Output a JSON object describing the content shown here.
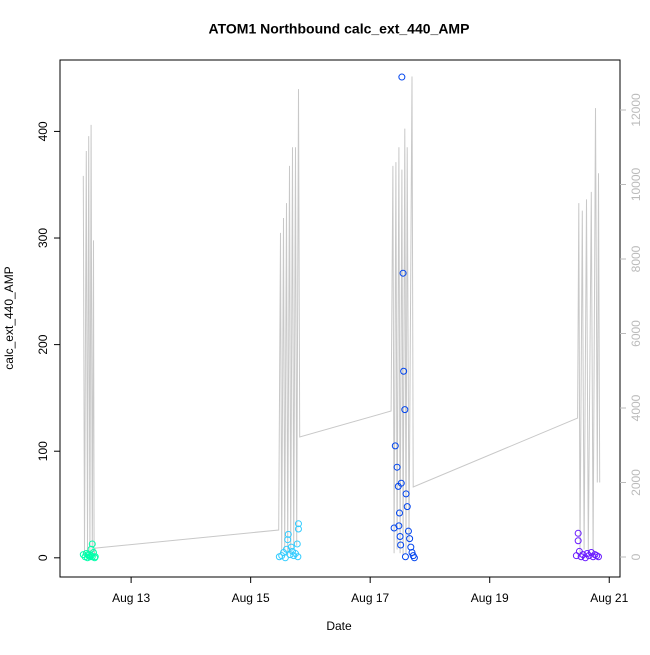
{
  "chart_data": {
    "type": "scatter",
    "title": "ATOM1 Northbound calc_ext_440_AMP",
    "xlabel": "Date",
    "ylabel": "calc_ext_440_AMP",
    "xlim": [
      11.81,
      21.18
    ],
    "xticks": [
      {
        "value": 13,
        "label": "Aug 13"
      },
      {
        "value": 15,
        "label": "Aug 15"
      },
      {
        "value": 17,
        "label": "Aug 17"
      },
      {
        "value": 19,
        "label": "Aug 19"
      },
      {
        "value": 21,
        "label": "Aug 21"
      }
    ],
    "ylim": [
      -18,
      467
    ],
    "yticks": [
      0,
      100,
      200,
      300,
      400
    ],
    "y2lim": [
      -537,
      13342
    ],
    "y2ticks": [
      0,
      2000,
      4000,
      6000,
      8000,
      10000,
      12000
    ],
    "series": [
      {
        "type": "line",
        "axis": "y2",
        "color": "#c8c8c8",
        "x": [
          12.2,
          12.22,
          12.25,
          12.27,
          12.29,
          12.31,
          12.33,
          12.35,
          12.37,
          12.38,
          12.4,
          15.47,
          15.5,
          15.52,
          15.55,
          15.57,
          15.6,
          15.62,
          15.65,
          15.67,
          15.7,
          15.72,
          15.75,
          15.77,
          15.8,
          15.82,
          17.35,
          17.38,
          17.4,
          17.43,
          17.45,
          17.48,
          17.5,
          17.53,
          17.55,
          17.58,
          17.6,
          17.62,
          17.65,
          17.7,
          17.72,
          20.47,
          20.49,
          20.51,
          20.55,
          20.58,
          20.62,
          20.65,
          20.7,
          20.73,
          20.77,
          20.8,
          20.82,
          20.84
        ],
        "values": [
          10230,
          50,
          10900,
          100,
          11300,
          0,
          11600,
          50,
          8500,
          0,
          240,
          725,
          8700,
          100,
          9100,
          200,
          9500,
          50,
          10500,
          100,
          11000,
          200,
          11000,
          300,
          12560,
          3220,
          3920,
          10500,
          100,
          10600,
          200,
          11000,
          100,
          10400,
          50,
          11500,
          100,
          11000,
          300,
          12900,
          1880,
          3730,
          9500,
          100,
          9300,
          200,
          9600,
          100,
          9800,
          50,
          12050,
          2000,
          10300,
          2000
        ]
      },
      {
        "color": "#00ffaa",
        "x": [
          12.2,
          12.23,
          12.25,
          12.27,
          12.29,
          12.31,
          12.33,
          12.35,
          12.37,
          12.39,
          12.33,
          12.35,
          12.28,
          12.4
        ],
        "values": [
          3,
          1,
          4,
          0,
          2,
          1,
          8,
          13,
          5,
          0,
          2,
          1,
          3,
          1
        ]
      },
      {
        "color": "#33ccff",
        "x": [
          15.48,
          15.52,
          15.55,
          15.58,
          15.6,
          15.62,
          15.63,
          15.66,
          15.68,
          15.7,
          15.72,
          15.75,
          15.78,
          15.8,
          15.8,
          15.79
        ],
        "values": [
          1,
          2,
          5,
          0,
          8,
          17,
          22,
          3,
          10,
          6,
          2,
          4,
          13,
          27,
          32,
          1
        ]
      },
      {
        "color": "#0044ee",
        "x": [
          17.4,
          17.42,
          17.45,
          17.47,
          17.49,
          17.5,
          17.52,
          17.53,
          17.55,
          17.56,
          17.58,
          17.6,
          17.62,
          17.64,
          17.66,
          17.68,
          17.7,
          17.72,
          17.74,
          17.48,
          17.51,
          17.59
        ],
        "values": [
          28,
          105,
          85,
          67,
          42,
          20,
          70,
          451,
          267,
          175,
          139,
          60,
          48,
          25,
          18,
          10,
          5,
          2,
          0,
          30,
          12,
          1
        ]
      },
      {
        "color": "#6a1bff",
        "x": [
          20.45,
          20.48,
          20.5,
          20.53,
          20.56,
          20.6,
          20.63,
          20.66,
          20.7,
          20.73,
          20.76,
          20.79,
          20.82,
          20.48
        ],
        "values": [
          2,
          23,
          6,
          1,
          3,
          0,
          4,
          2,
          5,
          1,
          3,
          2,
          1,
          16
        ]
      }
    ]
  }
}
